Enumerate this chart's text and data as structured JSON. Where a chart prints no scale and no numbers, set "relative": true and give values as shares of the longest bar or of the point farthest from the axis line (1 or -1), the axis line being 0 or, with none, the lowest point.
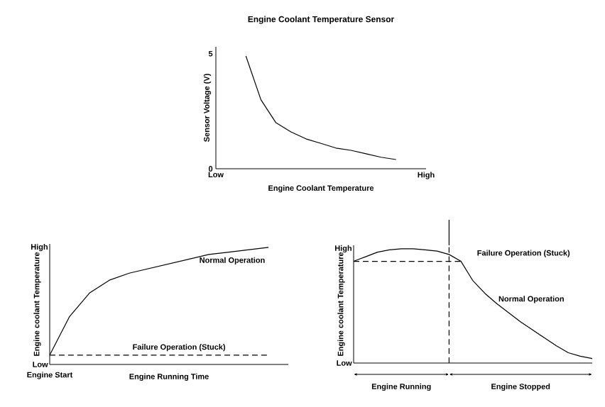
{
  "chart_data": [
    {
      "type": "line",
      "title": "Engine Coolant Temperature Sensor",
      "xlabel": "Engine Coolant Temperature",
      "ylabel": "Sensor Voltage (V)",
      "ylim": [
        0,
        5.3
      ],
      "yticks": [
        0,
        5
      ],
      "categories": [
        "Low",
        null,
        null,
        null,
        null,
        null,
        null,
        null,
        null,
        null,
        null,
        null,
        null,
        null,
        "High"
      ],
      "series": [
        {
          "color": "#000000",
          "values": [
            null,
            null,
            4.9,
            3.0,
            2.0,
            1.6,
            1.3,
            1.1,
            0.9,
            0.8,
            0.65,
            0.5,
            0.4,
            null,
            null
          ]
        }
      ]
    },
    {
      "type": "line",
      "relative": true,
      "xlabel": "Engine Running Time",
      "ylabel": "Engine coolant Temperature",
      "annotations": [
        "High",
        "Low",
        "Engine Start"
      ],
      "categories": [
        null,
        null,
        null,
        null,
        null,
        null,
        null,
        null,
        null,
        null,
        null,
        null,
        null
      ],
      "series": [
        {
          "name": "Normal Operation",
          "color": "#000000",
          "line_style": "solid",
          "values": [
            0.08,
            0.41,
            0.61,
            0.72,
            0.78,
            0.82,
            0.86,
            0.9,
            0.94,
            0.96,
            0.98,
            1.0,
            null
          ]
        },
        {
          "name": "Failure Operation (Stuck)",
          "color": "#000000",
          "line_style": "dashed",
          "values": [
            0.08,
            0.08,
            0.08,
            0.08,
            0.08,
            0.08,
            0.08,
            0.08,
            0.08,
            0.08,
            0.08,
            0.08,
            null
          ]
        }
      ]
    },
    {
      "type": "line",
      "relative": true,
      "ylabel": "Engine coolant Temperature",
      "annotations": [
        "High",
        "Low",
        "Engine Running",
        "Engine Stopped"
      ],
      "categories": [
        null,
        null,
        null,
        null,
        null,
        null,
        null,
        null,
        null,
        null,
        null,
        null,
        null,
        null,
        null,
        null,
        null,
        null,
        null,
        null,
        null
      ],
      "series": [
        {
          "name": "Normal Operation",
          "color": "#000000",
          "line_style": "solid",
          "values": [
            0.89,
            0.93,
            0.97,
            0.99,
            1.0,
            1.0,
            0.99,
            0.98,
            0.95,
            0.89,
            0.72,
            0.61,
            0.52,
            0.44,
            0.36,
            0.29,
            0.22,
            0.15,
            0.09,
            0.06,
            0.04
          ]
        },
        {
          "name": "Failure Operation (Stuck)",
          "color": "#000000",
          "line_style": "dashed",
          "values": [
            0.89,
            0.89,
            0.89,
            0.89,
            0.89,
            0.89,
            0.89,
            0.89,
            0.89,
            0.89,
            null,
            null,
            null,
            null,
            null,
            null,
            null,
            null,
            null,
            null,
            null
          ]
        }
      ]
    }
  ]
}
